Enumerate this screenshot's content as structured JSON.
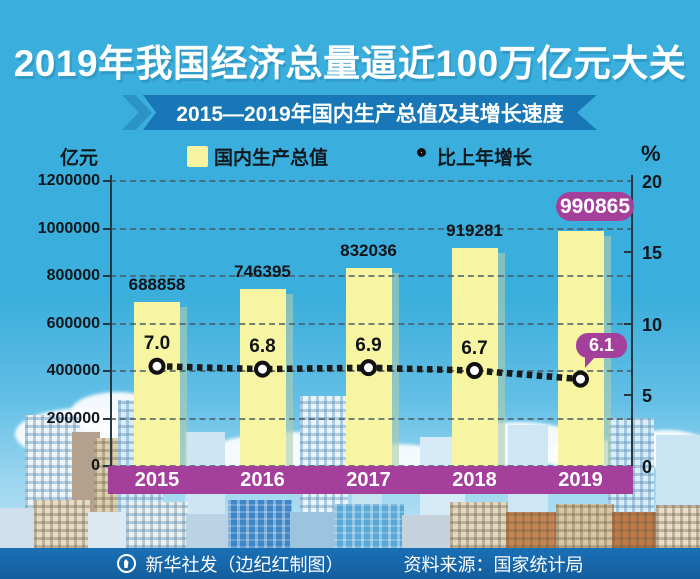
{
  "page": {
    "background": "#3AAEDC",
    "accent_purple": "#A4409C",
    "ribbon_blue": "#1877B6",
    "bar_yellow": "#F8F5A2"
  },
  "header": {
    "title": "2019年我国经济总量逼近100万亿元大关",
    "banner": "2015—2019年国内生产总值及其增长速度"
  },
  "legend": {
    "left_axis_unit": "亿元",
    "right_axis_unit": "%",
    "items": [
      {
        "label": "国内生产总值",
        "marker": "bar-swatch",
        "color": "#F8F3A0"
      },
      {
        "label": "比上年增长",
        "marker": "line-dot-marker"
      }
    ]
  },
  "chart_data": {
    "type": "bar",
    "categories": [
      "2015",
      "2016",
      "2017",
      "2018",
      "2019"
    ],
    "series": [
      {
        "name": "国内生产总值",
        "type": "bar",
        "axis": "left",
        "color": "#F8F5A2",
        "values": [
          688858,
          746395,
          832036,
          919281,
          990865
        ],
        "value_labels": [
          "688858",
          "746395",
          "832036",
          "919281",
          "990865"
        ]
      },
      {
        "name": "比上年增长",
        "type": "line",
        "axis": "right",
        "color": "#1a1a1a",
        "values": [
          7.0,
          6.8,
          6.9,
          6.7,
          6.1
        ],
        "value_labels": [
          "7.0",
          "6.8",
          "6.9",
          "6.7",
          "6.1"
        ]
      }
    ],
    "left_axis": {
      "label": "亿元",
      "min": 0,
      "max": 1200000,
      "step": 200000,
      "ticks": [
        "1200000",
        "1000000",
        "800000",
        "600000",
        "400000",
        "200000",
        "0"
      ]
    },
    "right_axis": {
      "label": "%",
      "min": 0,
      "max": 20,
      "step": 5,
      "ticks": [
        "20",
        "15",
        "10",
        "5",
        "0"
      ]
    },
    "highlight": {
      "bar_badge_text": "990865",
      "line_badge_text": "6.1",
      "badge_color": "#A4409C"
    },
    "grid": "dashed-horizontal",
    "title": "2015—2019年国内生产总值及其增长速度",
    "headline": "2019年我国经济总量逼近100万亿元大关"
  },
  "footer": {
    "credit": "新华社发（边纪红制图）",
    "source": "资料来源：国家统计局"
  }
}
